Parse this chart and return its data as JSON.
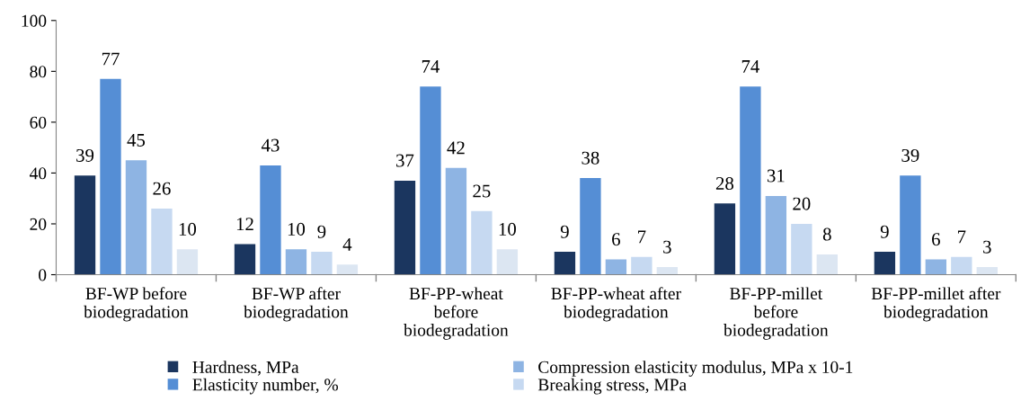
{
  "chart_data": {
    "type": "bar",
    "categories": [
      "BF-WP before\nbiodegradation",
      "BF-WP after\nbiodegradation",
      "BF-PP-wheat\nbefore\nbiodegradation",
      "BF-PP-wheat after\nbiodegradation",
      "BF-PP-millet\nbefore\nbiodegradation",
      "BF-PP-millet after\nbiodegradation"
    ],
    "series": [
      {
        "name": "Hardness, MPa",
        "color": "#1b365f",
        "values": [
          39,
          12,
          37,
          9,
          28,
          9
        ]
      },
      {
        "name": "Elasticity number, %",
        "color": "#558ed5",
        "values": [
          77,
          43,
          74,
          38,
          74,
          39
        ]
      },
      {
        "name": "Compression elasticity modulus, MPa x 10-1",
        "color": "#8eb4e3",
        "values": [
          45,
          10,
          42,
          6,
          31,
          6
        ]
      },
      {
        "name": "Breaking stress, MPa",
        "color": "#c6d9f1",
        "values": [
          26,
          9,
          25,
          7,
          20,
          7
        ]
      },
      {
        "color": "#dce6f2",
        "values": [
          10,
          4,
          10,
          3,
          8,
          3
        ]
      }
    ],
    "ylim": [
      0,
      100
    ],
    "yticks": [
      0,
      20,
      40,
      60,
      80,
      100
    ],
    "data_labels": true,
    "grid": false,
    "legend": "bottom"
  }
}
